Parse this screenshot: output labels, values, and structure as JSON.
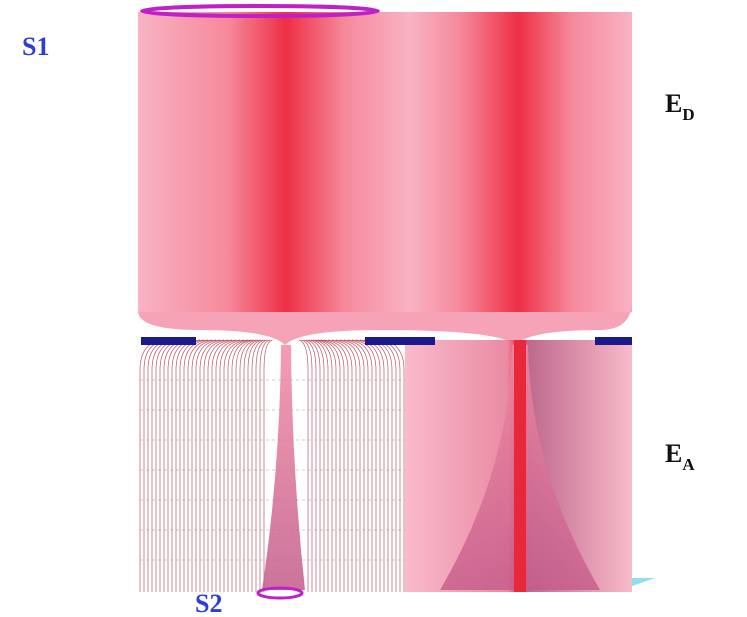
{
  "labels": {
    "s1": "S1",
    "s2": "S2",
    "e_d": {
      "base": "E",
      "sub": "D"
    },
    "e_a": {
      "base": "E",
      "sub": "A"
    }
  }
}
